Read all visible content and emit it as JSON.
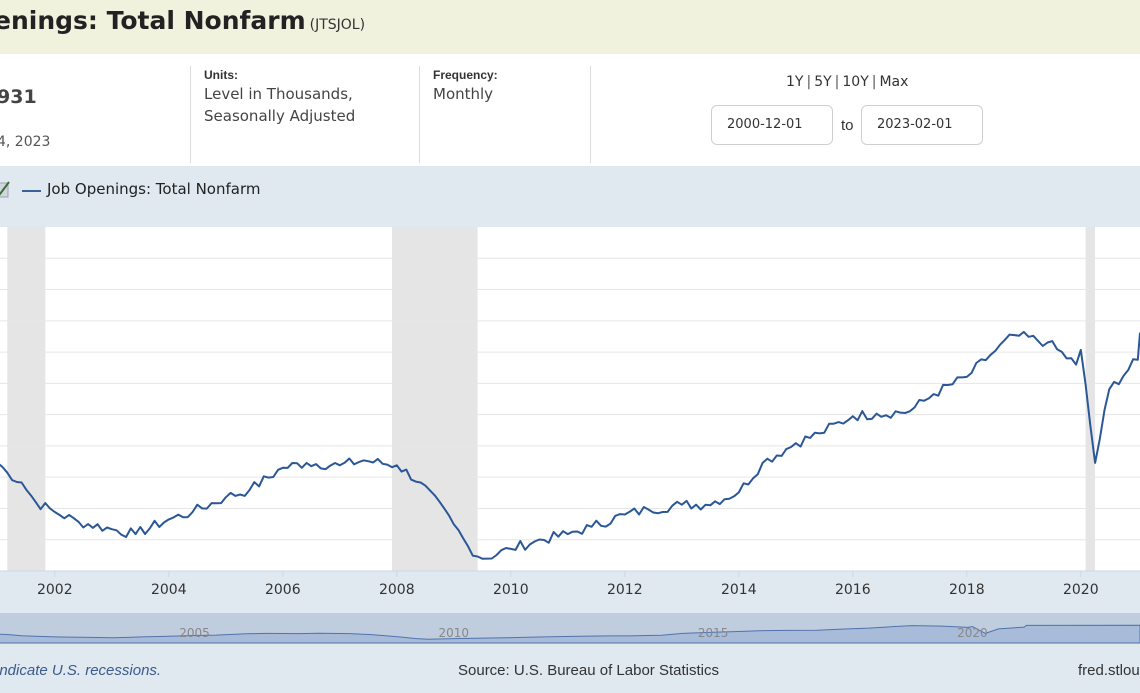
{
  "header": {
    "title": "enings: Total Nonfarm",
    "series_id": "(JTSJOL)"
  },
  "observation": {
    "value": "931",
    "date": "4, 2023"
  },
  "units": {
    "label": "Units:",
    "line1": "Level in Thousands,",
    "line2": "Seasonally Adjusted"
  },
  "frequency": {
    "label": "Frequency:",
    "value": "Monthly"
  },
  "range": {
    "links": [
      "1Y",
      "5Y",
      "10Y",
      "Max"
    ],
    "separator": "|",
    "start": "2000-12-01",
    "to": "to",
    "end": "2023-02-01"
  },
  "legend": {
    "label": "Job Openings: Total Nonfarm",
    "check_icon": "checkmark-icon"
  },
  "footer": {
    "note": "indicate U.S. recessions.",
    "source": "Source: U.S. Bureau of Labor Statistics",
    "site": "fred.stlou"
  },
  "colors": {
    "title_bg": "#f1f2de",
    "panel_bg": "#e1e9f0",
    "line": "#2b5797",
    "recession": "#e5e5e5",
    "navigator_fill": "#b8c8e0"
  },
  "chart_data": {
    "type": "line",
    "title": "",
    "xlabel": "",
    "ylabel": "",
    "x_tick_labels": [
      "2002",
      "2004",
      "2006",
      "2008",
      "2010",
      "2012",
      "2014",
      "2016",
      "2018",
      "2020"
    ],
    "navigator_tick_labels": [
      "2005",
      "2010",
      "2015",
      "2020"
    ],
    "recessions": [
      [
        "2001-03-01",
        "2001-11-01"
      ],
      [
        "2007-12-01",
        "2009-06-01"
      ],
      [
        "2020-02-01",
        "2020-04-01"
      ]
    ],
    "grid": true,
    "series": [
      {
        "name": "Job Openings: Total Nonfarm",
        "x": [
          "2000-12-01",
          "2001-03-01",
          "2001-06-01",
          "2001-09-01",
          "2002-01-01",
          "2002-06-01",
          "2003-01-01",
          "2003-06-01",
          "2004-01-01",
          "2004-06-01",
          "2005-01-01",
          "2005-06-01",
          "2006-01-01",
          "2006-06-01",
          "2007-01-01",
          "2007-06-01",
          "2008-01-01",
          "2008-06-01",
          "2009-01-01",
          "2009-04-01",
          "2009-07-01",
          "2010-01-01",
          "2010-06-01",
          "2011-01-01",
          "2011-06-01",
          "2012-01-01",
          "2012-06-01",
          "2013-01-01",
          "2013-06-01",
          "2014-01-01",
          "2014-06-01",
          "2015-01-01",
          "2015-06-01",
          "2016-01-01",
          "2016-06-01",
          "2017-01-01",
          "2017-06-01",
          "2018-01-01",
          "2018-06-01",
          "2018-11-01",
          "2019-06-01",
          "2019-12-01",
          "2020-01-01",
          "2020-04-01",
          "2020-07-01",
          "2021-01-01",
          "2021-01-15"
        ],
        "y": [
          4800,
          4500,
          4300,
          3900,
          3700,
          3500,
          3350,
          3250,
          3550,
          3700,
          4000,
          4150,
          4600,
          4700,
          4650,
          4750,
          4650,
          4300,
          3450,
          3000,
          2750,
          2950,
          3100,
          3250,
          3400,
          3650,
          3750,
          3850,
          3850,
          4100,
          4700,
          5100,
          5300,
          5650,
          5700,
          5750,
          6100,
          6450,
          6900,
          7300,
          7150,
          6700,
          7000,
          4700,
          6200,
          6800,
          7350
        ]
      }
    ],
    "ylim": [
      2500,
      9500
    ],
    "xlim": [
      "2001-01-15",
      "2021-01-15"
    ]
  }
}
